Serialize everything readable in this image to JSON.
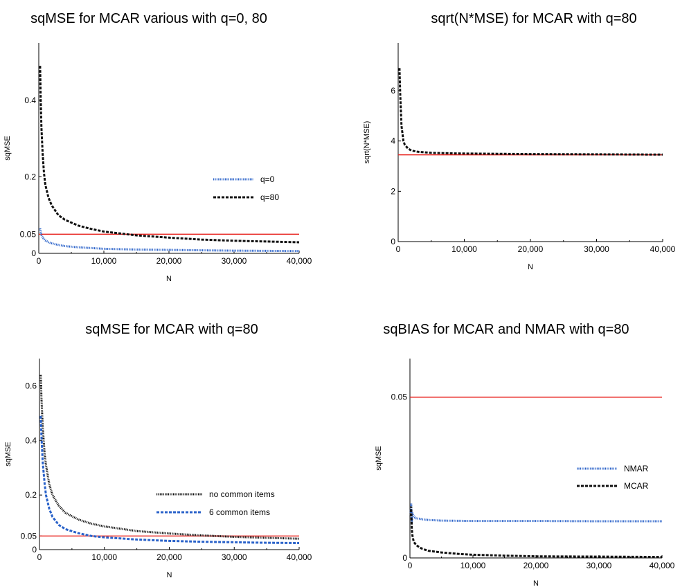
{
  "chart_data": [
    {
      "type": "line",
      "title": "sqMSE for MCAR various with q=0, 80",
      "xlabel": "N",
      "ylabel": "sqMSE",
      "xlim": [
        0,
        40000
      ],
      "ylim": [
        0,
        0.55
      ],
      "xticks": [
        0,
        10000,
        20000,
        30000,
        40000
      ],
      "xtick_labels": [
        "0",
        "10,000",
        "20,000",
        "30,000",
        "40,000"
      ],
      "yticks": [
        0,
        0.05,
        0.2,
        0.4
      ],
      "ytick_labels": [
        "0",
        "0.05",
        "0.2",
        "0.4"
      ],
      "legend_position": "right",
      "reference_line": {
        "y": 0.05,
        "color": "#e8211c"
      },
      "series": [
        {
          "name": "q=0",
          "color": "#2a62c9",
          "style": "dotted",
          "x": [
            200,
            400,
            600,
            1000,
            1500,
            2000,
            3000,
            4000,
            6000,
            8000,
            10000,
            15000,
            20000,
            25000,
            30000,
            35000,
            40000
          ],
          "y": [
            0.065,
            0.048,
            0.041,
            0.034,
            0.029,
            0.026,
            0.022,
            0.019,
            0.016,
            0.014,
            0.012,
            0.01,
            0.009,
            0.008,
            0.007,
            0.0065,
            0.006
          ]
        },
        {
          "name": "q=80",
          "color": "#111111",
          "style": "dashed",
          "x": [
            200,
            300,
            400,
            600,
            800,
            1000,
            1500,
            2000,
            3000,
            4000,
            6000,
            8000,
            10000,
            15000,
            20000,
            25000,
            30000,
            35000,
            40000
          ],
          "y": [
            0.49,
            0.4,
            0.33,
            0.26,
            0.21,
            0.18,
            0.145,
            0.125,
            0.1,
            0.088,
            0.073,
            0.064,
            0.057,
            0.047,
            0.041,
            0.036,
            0.033,
            0.031,
            0.029
          ]
        }
      ]
    },
    {
      "type": "line",
      "title": "sqrt(N*MSE) for MCAR with q=80",
      "xlabel": "N",
      "ylabel": "sqrt(N*MSE)",
      "xlim": [
        0,
        40000
      ],
      "ylim": [
        0,
        7.9
      ],
      "xticks": [
        0,
        10000,
        20000,
        30000,
        40000
      ],
      "xtick_labels": [
        "0",
        "10,000",
        "20,000",
        "30,000",
        "40,000"
      ],
      "yticks": [
        0,
        2,
        4,
        6
      ],
      "ytick_labels": [
        "0",
        "2",
        "4",
        "6"
      ],
      "reference_line": {
        "y": 3.45,
        "color": "#e8211c"
      },
      "series": [
        {
          "color": "#111111",
          "style": "dashed",
          "x": [
            200,
            300,
            500,
            800,
            1000,
            1500,
            2000,
            3000,
            5000,
            8000,
            10000,
            15000,
            20000,
            30000,
            40000
          ],
          "y": [
            6.9,
            5.9,
            4.6,
            4.0,
            3.85,
            3.7,
            3.62,
            3.57,
            3.53,
            3.51,
            3.5,
            3.49,
            3.48,
            3.47,
            3.46
          ]
        }
      ]
    },
    {
      "type": "line",
      "title": "sqMSE for MCAR with q=80",
      "xlabel": "N",
      "ylabel": "sqMSE",
      "xlim": [
        0,
        40000
      ],
      "ylim": [
        0,
        0.7
      ],
      "xticks": [
        0,
        10000,
        20000,
        30000,
        40000
      ],
      "xtick_labels": [
        "0",
        "10,000",
        "20,000",
        "30,000",
        "40,000"
      ],
      "yticks": [
        0,
        0.05,
        0.2,
        0.4,
        0.6
      ],
      "ytick_labels": [
        "0",
        "0.05",
        "0.2",
        "0.4",
        "0.6"
      ],
      "legend_position": "right",
      "reference_line": {
        "y": 0.05,
        "color": "#e8211c"
      },
      "series": [
        {
          "name": "no common items",
          "color": "#111111",
          "style": "dotted",
          "x": [
            200,
            300,
            500,
            800,
            1000,
            1500,
            2000,
            3000,
            4000,
            6000,
            8000,
            10000,
            15000,
            20000,
            25000,
            30000,
            35000,
            40000
          ],
          "y": [
            0.64,
            0.56,
            0.45,
            0.35,
            0.31,
            0.24,
            0.2,
            0.16,
            0.135,
            0.11,
            0.095,
            0.085,
            0.068,
            0.059,
            0.052,
            0.047,
            0.043,
            0.04
          ]
        },
        {
          "name": "6 common items",
          "color": "#2a62c9",
          "style": "dashed",
          "x": [
            200,
            300,
            500,
            800,
            1000,
            1500,
            2000,
            3000,
            4000,
            6000,
            8000,
            10000,
            15000,
            20000,
            25000,
            30000,
            35000,
            40000
          ],
          "y": [
            0.49,
            0.42,
            0.32,
            0.24,
            0.2,
            0.15,
            0.12,
            0.09,
            0.075,
            0.06,
            0.05,
            0.045,
            0.037,
            0.032,
            0.029,
            0.027,
            0.025,
            0.024
          ]
        }
      ]
    },
    {
      "type": "line",
      "title": "sqBIAS for MCAR and NMAR with q=80",
      "xlabel": "N",
      "ylabel": "sqMSE",
      "xlim": [
        0,
        40000
      ],
      "ylim": [
        0,
        0.062
      ],
      "xticks": [
        0,
        10000,
        20000,
        30000,
        40000
      ],
      "xtick_labels": [
        "0",
        "10,000",
        "20,000",
        "30,000",
        "40,000"
      ],
      "yticks": [
        0,
        0.05
      ],
      "ytick_labels": [
        "0",
        "0.05"
      ],
      "legend_position": "right",
      "reference_line": {
        "y": 0.05,
        "color": "#e8211c"
      },
      "series": [
        {
          "name": "NMAR",
          "color": "#2a62c9",
          "style": "dotted",
          "x": [
            100,
            200,
            300,
            400,
            600,
            800,
            1000,
            1500,
            2000,
            3000,
            5000,
            10000,
            20000,
            30000,
            40000
          ],
          "y": [
            0.013,
            0.017,
            0.011,
            0.014,
            0.013,
            0.0125,
            0.0123,
            0.0122,
            0.012,
            0.0118,
            0.0116,
            0.0115,
            0.0115,
            0.0114,
            0.0114
          ]
        },
        {
          "name": "MCAR",
          "color": "#111111",
          "style": "dashed",
          "x": [
            100,
            200,
            300,
            400,
            600,
            800,
            1000,
            1500,
            2000,
            3000,
            5000,
            8000,
            10000,
            15000,
            20000,
            30000,
            40000
          ],
          "y": [
            0.013,
            0.016,
            0.009,
            0.007,
            0.005,
            0.0045,
            0.004,
            0.0033,
            0.0028,
            0.0022,
            0.0017,
            0.0012,
            0.001,
            0.0007,
            0.0005,
            0.0004,
            0.0003
          ]
        }
      ]
    }
  ]
}
